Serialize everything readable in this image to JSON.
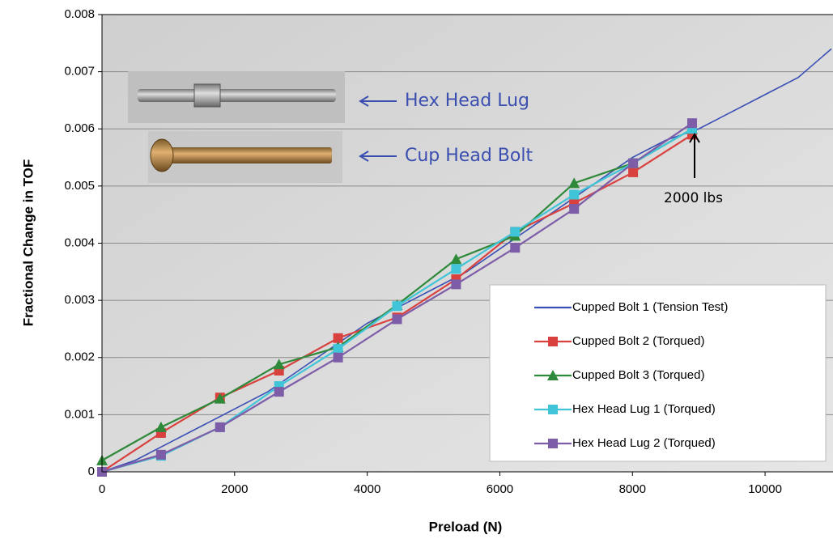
{
  "chart_data": {
    "type": "line",
    "x_label": "Preload (N)",
    "y_label": "Fractional Change in TOF",
    "xlim": [
      0,
      11000
    ],
    "ylim": [
      0,
      0.008
    ],
    "xticks": [
      0,
      2000,
      4000,
      6000,
      8000,
      10000
    ],
    "yticks": [
      0,
      0.001,
      0.002,
      0.003,
      0.004,
      0.005,
      0.006,
      0.007,
      0.008
    ],
    "grid": true,
    "legend": "lower right",
    "annotations": [
      "Hex Head Lug",
      "Cup Head Bolt",
      "2000 lbs"
    ],
    "series": [
      {
        "name": "Cupped Bolt 1 (Tension Test)",
        "color": "#3a4fb5",
        "marker": "none",
        "x": [
          0,
          500,
          1000,
          1500,
          2000,
          2500,
          3000,
          3500,
          4000,
          4500,
          5000,
          5500,
          6000,
          6500,
          7000,
          7500,
          8000,
          8500,
          9000,
          9500,
          10000,
          10500,
          11000
        ],
        "values": [
          0,
          0.0002,
          0.0005,
          0.0008,
          0.0011,
          0.0014,
          0.0018,
          0.0022,
          0.0026,
          0.0029,
          0.0032,
          0.0035,
          0.0039,
          0.0043,
          0.0047,
          0.0051,
          0.0055,
          0.0058,
          0.006,
          0.0063,
          0.0066,
          0.0069,
          0.0074
        ]
      },
      {
        "name": "Cupped Bolt 2 (Torqued)",
        "color": "#d9413f",
        "marker": "square",
        "x": [
          0,
          890,
          1780,
          2670,
          3560,
          4450,
          5340,
          6230,
          7120,
          8010,
          8900
        ],
        "values": [
          0,
          0.00068,
          0.0013,
          0.00177,
          0.00234,
          0.0027,
          0.00337,
          0.0042,
          0.0047,
          0.00524,
          0.0059
        ]
      },
      {
        "name": "Cupped Bolt 3 (Torqued)",
        "color": "#2e8a3a",
        "marker": "triangle",
        "x": [
          0,
          890,
          1780,
          2670,
          3560,
          4450,
          5340,
          6230,
          7120,
          8010,
          8900
        ],
        "values": [
          0.0002,
          0.00078,
          0.00128,
          0.00188,
          0.00218,
          0.00292,
          0.00372,
          0.00413,
          0.00505,
          0.0054,
          0.006
        ]
      },
      {
        "name": "Hex Head Lug 1 (Torqued)",
        "color": "#3fc4d8",
        "marker": "square",
        "x": [
          0,
          890,
          1780,
          2670,
          3560,
          4450,
          5340,
          6230,
          7120,
          8010,
          8900
        ],
        "values": [
          0,
          0.00028,
          0.00078,
          0.0015,
          0.00215,
          0.0029,
          0.00355,
          0.0042,
          0.00485,
          0.0054,
          0.006
        ]
      },
      {
        "name": "Hex Head Lug 2 (Torqued)",
        "color": "#7d5ca8",
        "marker": "square",
        "x": [
          0,
          890,
          1780,
          2670,
          3560,
          4450,
          5340,
          6230,
          7120,
          8010,
          8900
        ],
        "values": [
          0,
          0.0003,
          0.00078,
          0.0014,
          0.002,
          0.00267,
          0.00328,
          0.00392,
          0.0046,
          0.0054,
          0.0061
        ]
      }
    ]
  }
}
